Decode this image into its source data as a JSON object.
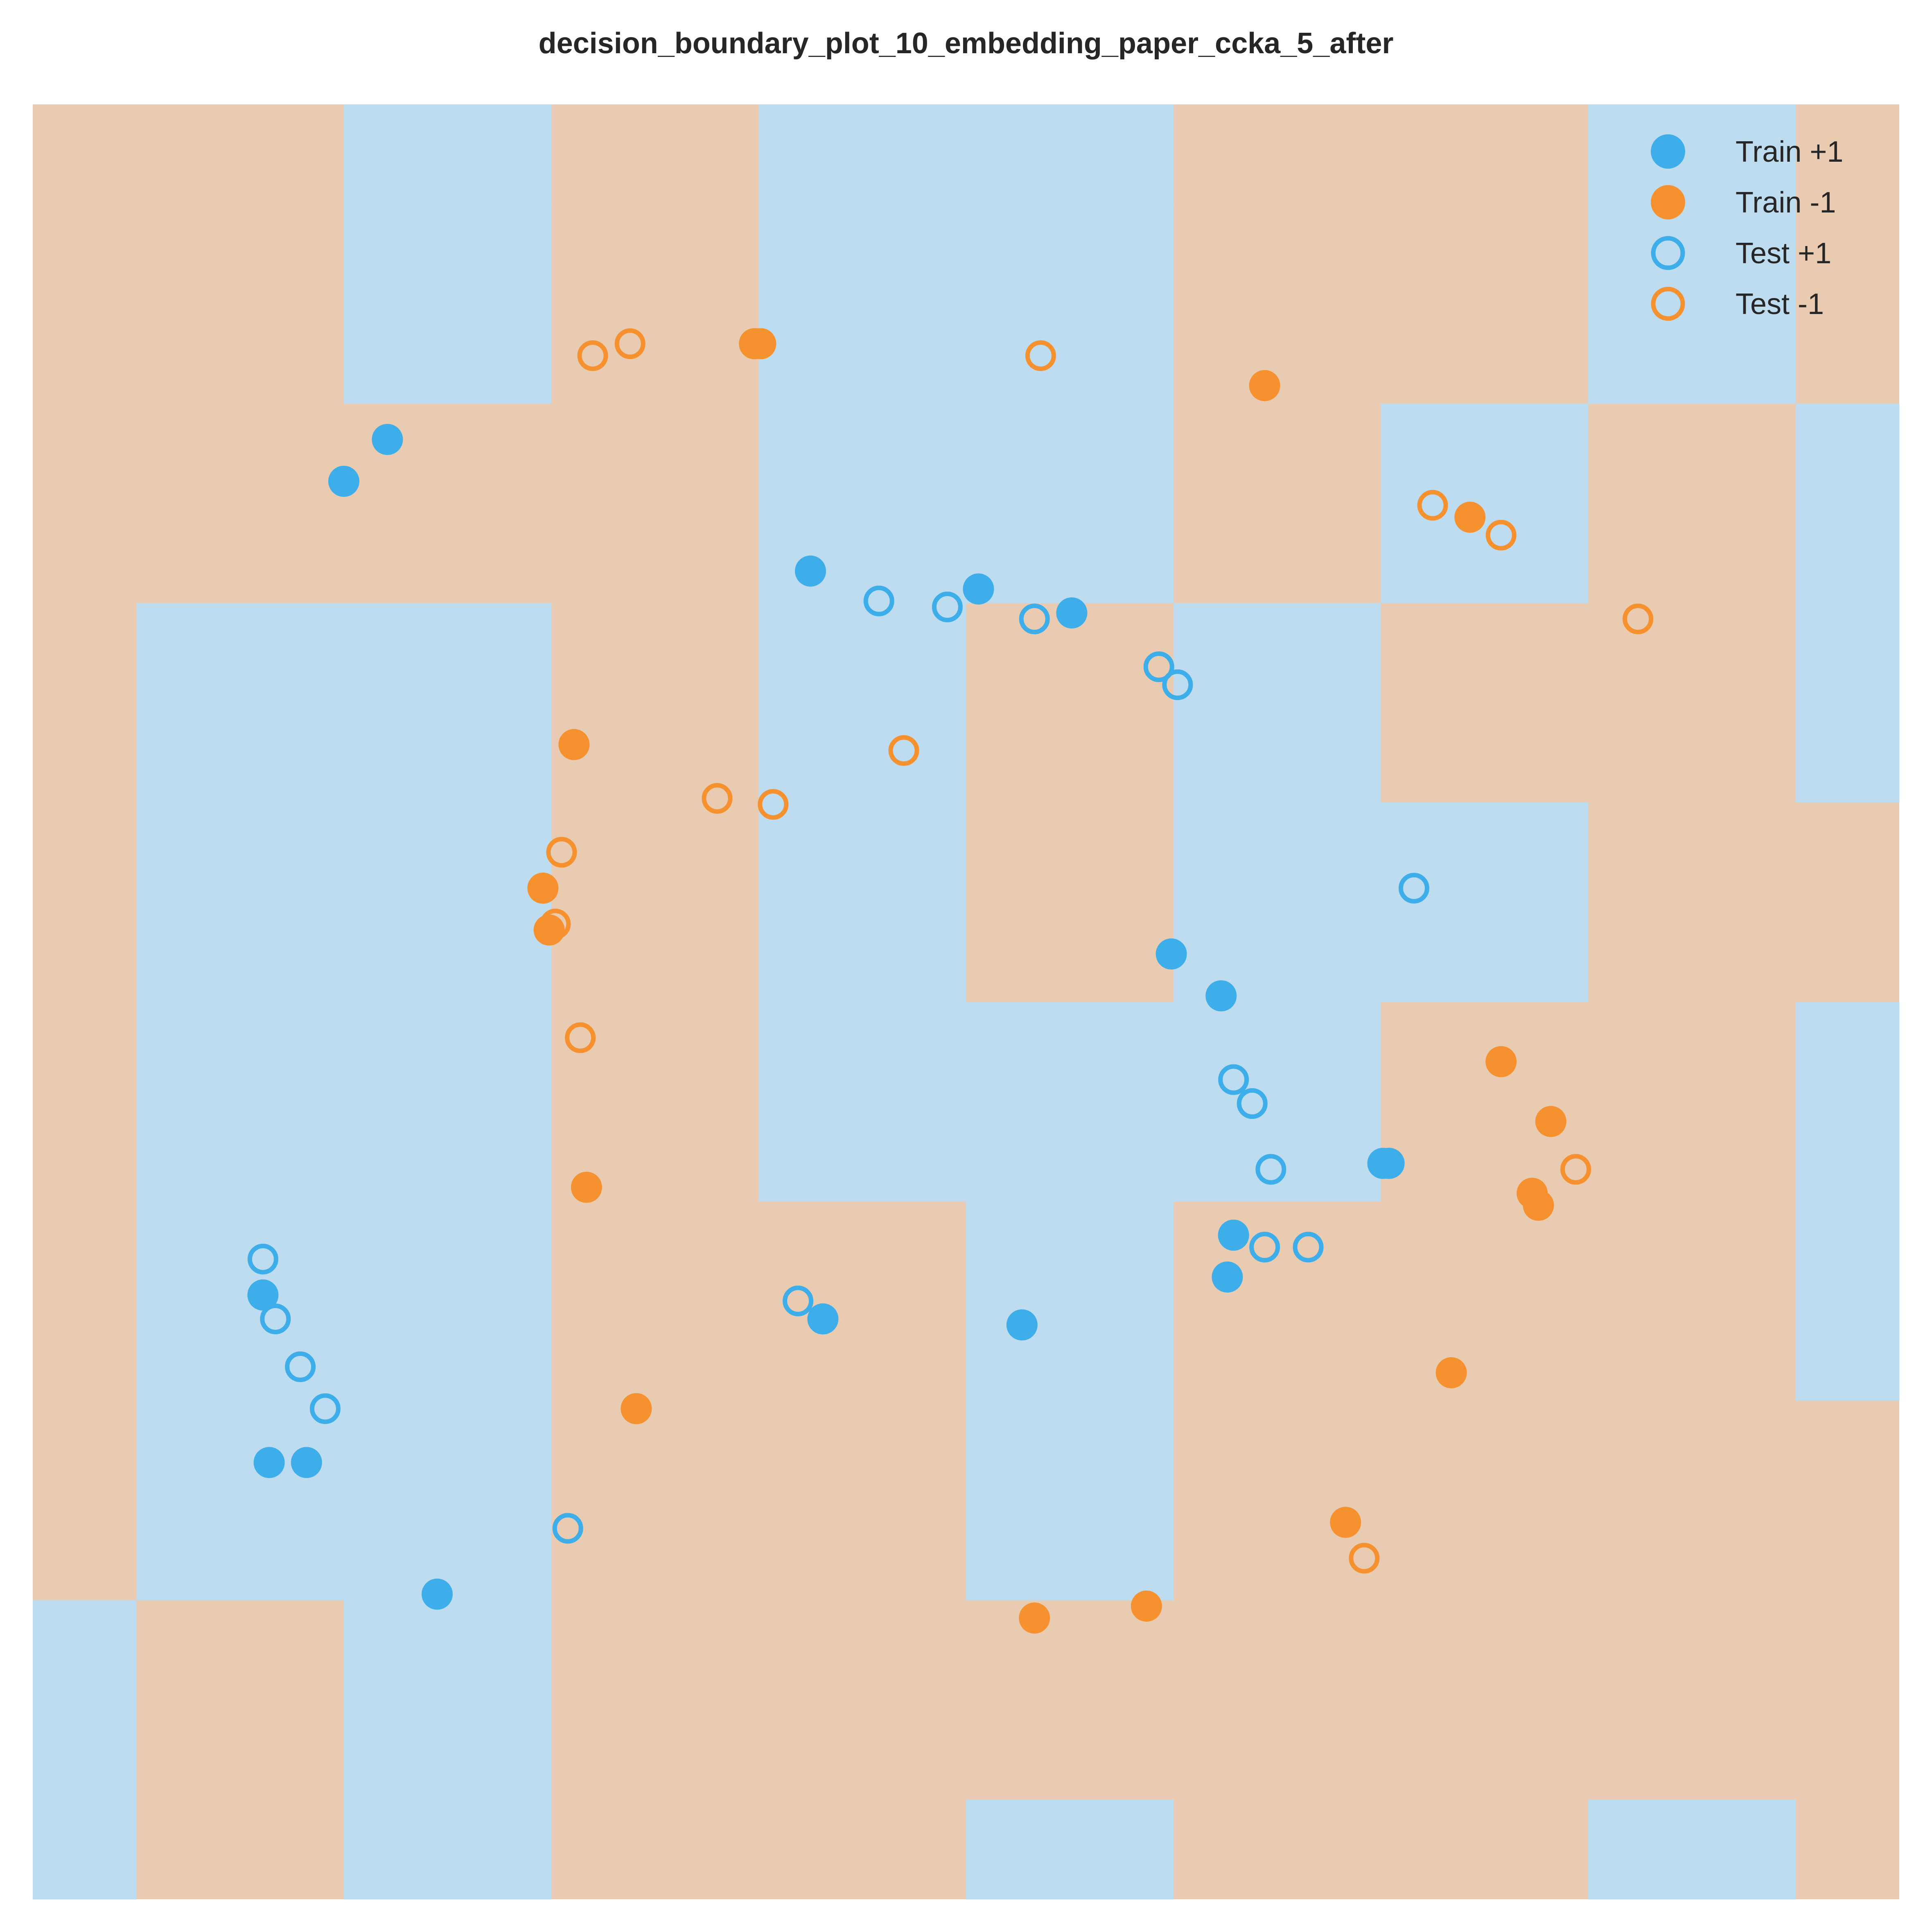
{
  "chart_data": {
    "type": "scatter",
    "title": "decision_boundary_plot_10_embedding_paper_ccka_5_after",
    "xlabel": "",
    "ylabel": "",
    "xlim": [
      -1.5,
      1.5
    ],
    "ylim": [
      -1.5,
      1.5
    ],
    "grid": false,
    "legend_position": "top-right",
    "colors": {
      "positive": "#3daee9",
      "negative": "#f5922f",
      "region_positive": "#bddcef",
      "region_negative": "#e8cbb1"
    },
    "decision_regions": {
      "grid_x": [
        -1.5,
        -1.1667,
        -0.8333,
        -0.5,
        -0.1667,
        0.1667,
        0.5,
        0.8333,
        1.1667,
        1.5
      ],
      "grid_y": [
        -1.5,
        -1.1667,
        -0.8333,
        -0.5,
        -0.1667,
        0.1667,
        0.5,
        0.8333,
        1.1667,
        1.5
      ],
      "labels": [
        [
          -1,
          -1,
          1,
          -1,
          1,
          1,
          -1,
          -1,
          1,
          -1
        ],
        [
          -1,
          -1,
          1,
          -1,
          1,
          1,
          -1,
          -1,
          1,
          -1
        ],
        [
          -1,
          -1,
          -1,
          -1,
          1,
          1,
          -1,
          1,
          -1,
          1
        ],
        [
          -1,
          1,
          1,
          -1,
          1,
          -1,
          1,
          -1,
          -1,
          1
        ],
        [
          -1,
          1,
          1,
          -1,
          1,
          -1,
          1,
          1,
          -1,
          -1
        ],
        [
          -1,
          1,
          1,
          -1,
          1,
          1,
          1,
          -1,
          -1,
          1
        ],
        [
          -1,
          1,
          1,
          -1,
          -1,
          1,
          -1,
          -1,
          -1,
          1
        ],
        [
          -1,
          1,
          1,
          -1,
          -1,
          1,
          -1,
          -1,
          -1,
          -1
        ],
        [
          1,
          -1,
          1,
          -1,
          -1,
          -1,
          -1,
          -1,
          -1,
          -1
        ],
        [
          1,
          -1,
          1,
          -1,
          -1,
          1,
          -1,
          -1,
          1,
          -1
        ]
      ]
    },
    "series": [
      {
        "name": "Train +1",
        "marker": "filled",
        "x": [
          -1.0,
          -0.93,
          -1.13,
          -1.12,
          -1.06,
          -0.25,
          0.02,
          0.17,
          0.33,
          0.41,
          0.67,
          0.68,
          0.42,
          0.43,
          0.09,
          -0.23,
          -0.85
        ],
        "y": [
          0.87,
          0.94,
          -0.49,
          -0.77,
          -0.77,
          0.72,
          0.69,
          0.65,
          0.08,
          0.01,
          -0.27,
          -0.27,
          -0.46,
          -0.39,
          -0.54,
          -0.53,
          -0.99
        ]
      },
      {
        "name": "Train -1",
        "marker": "filled",
        "x": [
          -0.34,
          -0.33,
          0.48,
          0.81,
          -0.63,
          -0.68,
          -0.67,
          -0.61,
          0.86,
          0.94,
          0.91,
          0.92,
          0.78,
          0.61,
          0.29,
          0.11,
          -0.53
        ],
        "y": [
          1.1,
          1.1,
          1.03,
          0.81,
          0.43,
          0.19,
          0.12,
          -0.31,
          -0.1,
          -0.2,
          -0.32,
          -0.34,
          -0.62,
          -0.87,
          -1.01,
          -1.03,
          -0.68
        ],
        "sizes_note": ""
      },
      {
        "name": "Test +1",
        "marker": "hollow",
        "x": [
          -1.13,
          -1.11,
          -1.07,
          -1.03,
          -0.64,
          -0.27,
          -0.14,
          -0.03,
          0.11,
          0.31,
          0.34,
          0.43,
          0.46,
          0.49,
          0.48,
          0.55,
          0.72
        ],
        "y": [
          -0.43,
          -0.53,
          -0.61,
          -0.68,
          -0.88,
          -0.5,
          0.67,
          0.66,
          0.64,
          0.56,
          0.53,
          -0.13,
          -0.17,
          -0.28,
          -0.41,
          -0.41,
          0.19
        ]
      },
      {
        "name": "Test -1",
        "marker": "hollow",
        "x": [
          -0.6,
          -0.54,
          0.12,
          0.75,
          0.86,
          1.08,
          -0.31,
          -0.65,
          -0.66,
          -0.62,
          0.64,
          0.98,
          -0.4,
          -0.1
        ],
        "y": [
          1.08,
          1.1,
          1.08,
          0.83,
          0.78,
          0.64,
          0.33,
          0.25,
          0.13,
          -0.06,
          -0.93,
          -0.28,
          0.34,
          0.42
        ]
      }
    ]
  }
}
